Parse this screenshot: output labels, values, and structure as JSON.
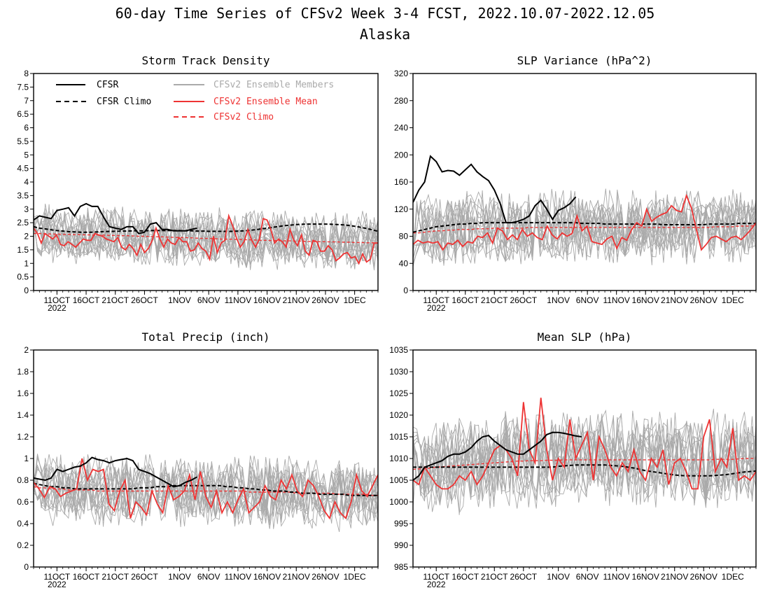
{
  "figure": {
    "title": "60-day Time Series of CFSv2 Week 3-4 FCST, 2022.10.07-2022.12.05",
    "subtitle": "Alaska"
  },
  "legend": {
    "cfsr": "CFSR",
    "cfsr_climo": "CFSR Climo",
    "members": "CFSv2 Ensemble Members",
    "ens_mean": "CFSv2 Ensemble Mean",
    "cfsv2_climo": "CFSv2 Climo"
  },
  "colors": {
    "cfsr": "#000000",
    "members": "#aaaaaa",
    "ens_mean": "#ee3333",
    "climo_red": "#ee3333"
  },
  "x_axis": {
    "type": "date",
    "start": "2022-10-07",
    "end": "2022-12-05",
    "ticks": [
      {
        "date": "2022-10-11",
        "label": "11OCT"
      },
      {
        "date": "2022-10-16",
        "label": "16OCT"
      },
      {
        "date": "2022-10-21",
        "label": "21OCT"
      },
      {
        "date": "2022-10-26",
        "label": "26OCT"
      },
      {
        "date": "2022-11-01",
        "label": "1NOV"
      },
      {
        "date": "2022-11-06",
        "label": "6NOV"
      },
      {
        "date": "2022-11-11",
        "label": "11NOV"
      },
      {
        "date": "2022-11-16",
        "label": "16NOV"
      },
      {
        "date": "2022-11-21",
        "label": "21NOV"
      },
      {
        "date": "2022-11-26",
        "label": "26NOV"
      },
      {
        "date": "2022-12-01",
        "label": "1DEC"
      }
    ],
    "year_label": "2022"
  },
  "chart_data": [
    {
      "type": "line",
      "title": "Storm Track Density",
      "ylim": [
        0,
        8
      ],
      "yticks": [
        "0",
        "0.5",
        "1",
        "1.5",
        "2",
        "2.5",
        "3",
        "3.5",
        "4",
        "4.5",
        "5",
        "5.5",
        "6",
        "6.5",
        "7",
        "7.5",
        "8"
      ],
      "cfsr": [
        2.6,
        2.75,
        2.7,
        2.65,
        2.95,
        3.0,
        3.05,
        2.75,
        3.1,
        3.2,
        3.1,
        3.1,
        2.7,
        2.35,
        2.3,
        2.25,
        2.35,
        2.35,
        2.1,
        2.15,
        2.45,
        2.5,
        2.25,
        2.25,
        2.2,
        2.2,
        2.2,
        2.25,
        2.3
      ],
      "cfsr_climo": [
        2.35,
        2.3,
        2.27,
        2.24,
        2.21,
        2.19,
        2.17,
        2.16,
        2.15,
        2.15,
        2.15,
        2.16,
        2.17,
        2.18,
        2.18,
        2.19,
        2.19,
        2.2,
        2.2,
        2.2,
        2.21,
        2.21,
        2.21,
        2.21,
        2.21,
        2.21,
        2.2,
        2.2,
        2.19,
        2.19,
        2.18,
        2.18,
        2.18,
        2.18,
        2.18,
        2.19,
        2.2,
        2.22,
        2.24,
        2.27,
        2.3,
        2.33,
        2.36,
        2.39,
        2.41,
        2.43,
        2.44,
        2.45,
        2.45,
        2.45,
        2.45,
        2.44,
        2.43,
        2.42,
        2.4,
        2.37,
        2.33,
        2.29,
        2.24,
        2.18
      ],
      "cfsv2_climo": [
        2.1,
        2.1,
        2.09,
        2.08,
        2.08,
        2.07,
        2.07,
        2.06,
        2.06,
        2.05,
        2.05,
        2.04,
        2.04,
        2.03,
        2.03,
        2.02,
        2.02,
        2.01,
        2.0,
        2.0,
        1.99,
        1.98,
        1.98,
        1.97,
        1.96,
        1.95,
        1.95,
        1.94,
        1.93,
        1.92,
        1.92,
        1.91,
        1.9,
        1.89,
        1.89,
        1.88,
        1.87,
        1.87,
        1.86,
        1.85,
        1.85,
        1.84,
        1.84,
        1.83,
        1.83,
        1.82,
        1.82,
        1.81,
        1.81,
        1.8,
        1.8,
        1.79,
        1.79,
        1.78,
        1.78,
        1.77,
        1.77,
        1.76,
        1.76,
        1.75
      ],
      "ens_mean": [
        2.3,
        2.1,
        1.75,
        2.1,
        2.0,
        1.9,
        2.05,
        1.7,
        1.65,
        1.8,
        1.7,
        1.6,
        1.75,
        1.9,
        1.85,
        1.85,
        2.1,
        2.05,
        2.0,
        1.9,
        1.85,
        1.8,
        1.95,
        1.6,
        1.5,
        1.7,
        1.55,
        1.3,
        1.7,
        1.4,
        1.55,
        1.85,
        2.3,
        1.9,
        1.6,
        1.9,
        1.75,
        1.7,
        1.95,
        1.8,
        1.8,
        1.45,
        1.5,
        1.75,
        1.55,
        1.45,
        1.15,
        2.0,
        1.4,
        1.75,
        1.85,
        2.75,
        2.4,
        1.95,
        1.6,
        1.8,
        2.25,
        1.85,
        1.6,
        1.9,
        2.65,
        2.6,
        2.25,
        1.75,
        1.9,
        1.8,
        1.6,
        2.25,
        1.85,
        1.65,
        2.05,
        1.45,
        1.3,
        1.85,
        1.8,
        1.45,
        1.45,
        1.65,
        1.5,
        1.1,
        1.2,
        1.35,
        1.4,
        1.2,
        1.25,
        1.0,
        1.35,
        1.05,
        1.15,
        1.75,
        1.75
      ],
      "members_n": 16,
      "members_amp": 0.6
    },
    {
      "type": "line",
      "title": "SLP Variance (hPa^2)",
      "ylim": [
        0,
        320
      ],
      "yticks": [
        "0",
        "40",
        "80",
        "120",
        "160",
        "200",
        "240",
        "280",
        "320"
      ],
      "cfsr": [
        130,
        148,
        160,
        198,
        190,
        175,
        177,
        176,
        170,
        178,
        186,
        175,
        168,
        162,
        148,
        128,
        100,
        100,
        102,
        105,
        110,
        125,
        133,
        120,
        105,
        118,
        122,
        128,
        138
      ],
      "cfsr_climo": [
        86,
        88,
        90,
        92,
        94,
        95,
        96,
        97,
        98,
        98,
        99,
        99,
        100,
        100,
        100,
        100,
        100,
        100,
        100,
        100,
        100,
        100,
        100,
        100,
        100,
        100,
        100,
        100,
        100,
        99,
        99,
        99,
        99,
        98,
        98,
        98,
        98,
        98,
        98,
        98,
        98,
        98,
        98,
        97,
        97,
        97,
        97,
        97,
        97,
        97,
        97,
        98,
        98,
        98,
        98,
        98,
        99,
        99,
        99,
        99
      ],
      "cfsv2_climo": [
        85,
        85,
        86,
        87,
        88,
        88,
        89,
        89,
        90,
        90,
        90,
        91,
        91,
        91,
        92,
        92,
        92,
        92,
        92,
        92,
        93,
        93,
        93,
        93,
        93,
        93,
        93,
        93,
        93,
        93,
        93,
        93,
        93,
        93,
        93,
        93,
        93,
        93,
        93,
        93,
        93,
        93,
        93,
        93,
        93,
        93,
        93,
        93,
        93,
        93,
        93,
        93,
        94,
        94,
        94,
        94,
        95,
        95,
        95,
        96
      ],
      "ens_mean": [
        68,
        74,
        70,
        72,
        70,
        72,
        60,
        70,
        68,
        74,
        65,
        72,
        70,
        80,
        78,
        85,
        70,
        92,
        88,
        75,
        82,
        75,
        90,
        80,
        85,
        78,
        75,
        95,
        82,
        76,
        85,
        80,
        84,
        110,
        88,
        95,
        72,
        70,
        68,
        76,
        80,
        62,
        78,
        74,
        90,
        100,
        95,
        120,
        102,
        108,
        112,
        115,
        125,
        118,
        116,
        140,
        122,
        90,
        60,
        68,
        78,
        80,
        76,
        72,
        78,
        80,
        75,
        82,
        90,
        100
      ],
      "members_n": 16,
      "members_amp": 30
    },
    {
      "type": "line",
      "title": "Total Precip (inch)",
      "ylim": [
        0,
        2
      ],
      "yticks": [
        "0",
        "0.2",
        "0.4",
        "0.6",
        "0.8",
        "1",
        "1.2",
        "1.4",
        "1.6",
        "1.8",
        "2"
      ],
      "cfsr": [
        0.82,
        0.81,
        0.8,
        0.82,
        0.9,
        0.88,
        0.9,
        0.92,
        0.93,
        0.96,
        1.01,
        0.99,
        0.98,
        0.96,
        0.98,
        0.99,
        1.0,
        0.98,
        0.9,
        0.88,
        0.86,
        0.83,
        0.8,
        0.77,
        0.74,
        0.75,
        0.78,
        0.8,
        0.83
      ],
      "cfsr_climo": [
        0.77,
        0.76,
        0.75,
        0.74,
        0.74,
        0.73,
        0.73,
        0.72,
        0.72,
        0.72,
        0.72,
        0.72,
        0.72,
        0.72,
        0.72,
        0.72,
        0.72,
        0.72,
        0.73,
        0.73,
        0.73,
        0.74,
        0.74,
        0.74,
        0.75,
        0.75,
        0.75,
        0.75,
        0.75,
        0.75,
        0.75,
        0.75,
        0.75,
        0.74,
        0.74,
        0.73,
        0.73,
        0.72,
        0.72,
        0.71,
        0.71,
        0.7,
        0.7,
        0.7,
        0.69,
        0.69,
        0.68,
        0.68,
        0.68,
        0.67,
        0.67,
        0.67,
        0.67,
        0.67,
        0.66,
        0.66,
        0.66,
        0.66,
        0.66,
        0.66
      ],
      "cfsv2_climo": [
        0.74,
        0.73,
        0.73,
        0.72,
        0.72,
        0.72,
        0.71,
        0.71,
        0.71,
        0.71,
        0.71,
        0.7,
        0.7,
        0.7,
        0.7,
        0.7,
        0.7,
        0.7,
        0.7,
        0.7,
        0.7,
        0.7,
        0.7,
        0.7,
        0.7,
        0.7,
        0.7,
        0.7,
        0.7,
        0.7,
        0.7,
        0.7,
        0.7,
        0.7,
        0.7,
        0.7,
        0.7,
        0.69,
        0.69,
        0.69,
        0.69,
        0.69,
        0.69,
        0.69,
        0.69,
        0.68,
        0.68,
        0.68,
        0.68,
        0.68,
        0.68,
        0.68,
        0.67,
        0.67,
        0.67,
        0.67,
        0.67,
        0.67,
        0.66,
        0.66
      ],
      "ens_mean": [
        0.78,
        0.72,
        0.64,
        0.74,
        0.72,
        0.65,
        0.68,
        0.7,
        0.72,
        1.0,
        0.8,
        0.9,
        0.88,
        0.9,
        0.58,
        0.52,
        0.7,
        0.8,
        0.45,
        0.6,
        0.55,
        0.48,
        0.7,
        0.58,
        0.5,
        0.75,
        0.62,
        0.65,
        0.7,
        0.85,
        0.62,
        0.88,
        0.65,
        0.55,
        0.7,
        0.5,
        0.6,
        0.5,
        0.62,
        0.72,
        0.5,
        0.55,
        0.6,
        0.75,
        0.65,
        0.62,
        0.8,
        0.72,
        0.85,
        0.7,
        0.65,
        0.8,
        0.75,
        0.65,
        0.52,
        0.45,
        0.6,
        0.5,
        0.45,
        0.6,
        0.85,
        0.7,
        0.65,
        0.75,
        0.85
      ],
      "members_n": 16,
      "members_amp": 0.18
    },
    {
      "type": "line",
      "title": "Mean SLP (hPa)",
      "ylim": [
        985,
        1035
      ],
      "yticks": [
        "985",
        "990",
        "995",
        "1000",
        "1005",
        "1010",
        "1015",
        "1020",
        "1025",
        "1030",
        "1035"
      ],
      "cfsr": [
        1005,
        1006,
        1008,
        1008.5,
        1009,
        1009.5,
        1010.5,
        1011,
        1011,
        1011.5,
        1012.5,
        1014,
        1015,
        1015.3,
        1014,
        1013,
        1012,
        1011.5,
        1011,
        1011,
        1012,
        1013,
        1014,
        1015.5,
        1016,
        1016,
        1015.8,
        1015.5,
        1015.2,
        1015
      ],
      "cfsr_climo": [
        1008,
        1008,
        1008,
        1008,
        1008,
        1008,
        1008,
        1008,
        1008,
        1008,
        1008,
        1008,
        1008,
        1008,
        1008,
        1008,
        1008,
        1008,
        1008,
        1008,
        1008,
        1008,
        1008,
        1008,
        1008,
        1008.2,
        1008.3,
        1008.4,
        1008.5,
        1008.5,
        1008.5,
        1008.5,
        1008.5,
        1008.5,
        1008.4,
        1008.3,
        1008.2,
        1008,
        1007.8,
        1007.5,
        1007.2,
        1007,
        1006.8,
        1006.6,
        1006.4,
        1006.2,
        1006.1,
        1006,
        1006,
        1006,
        1006,
        1006,
        1006.1,
        1006.2,
        1006.3,
        1006.5,
        1006.7,
        1006.9,
        1007,
        1007.1
      ],
      "cfsv2_climo": [
        1007.5,
        1007.6,
        1007.7,
        1007.8,
        1008,
        1008.1,
        1008.2,
        1008.3,
        1008.4,
        1008.5,
        1008.6,
        1008.7,
        1008.8,
        1008.9,
        1009,
        1009.1,
        1009.2,
        1009.3,
        1009.4,
        1009.4,
        1009.5,
        1009.5,
        1009.5,
        1009.6,
        1009.6,
        1009.6,
        1009.7,
        1009.7,
        1009.7,
        1009.7,
        1009.7,
        1009.7,
        1009.7,
        1009.7,
        1009.7,
        1009.7,
        1009.7,
        1009.7,
        1009.7,
        1009.7,
        1009.7,
        1009.7,
        1009.7,
        1009.7,
        1009.7,
        1009.7,
        1009.7,
        1009.7,
        1009.7,
        1009.7,
        1009.7,
        1009.7,
        1009.8,
        1009.8,
        1009.8,
        1009.8,
        1009.9,
        1010,
        1010,
        1010.1
      ],
      "ens_mean": [
        1005,
        1004,
        1008,
        1006,
        1004,
        1003,
        1003,
        1004,
        1006,
        1005,
        1007,
        1004,
        1006,
        1009,
        1012,
        1013,
        1012,
        1010,
        1006,
        1023,
        1012,
        1009,
        1024,
        1012,
        1005,
        1010,
        1008,
        1019,
        1010,
        1013,
        1016,
        1005,
        1015,
        1012,
        1008,
        1006,
        1009,
        1007,
        1012,
        1007,
        1005,
        1010,
        1008,
        1012,
        1004,
        1009,
        1010,
        1007,
        1003,
        1003,
        1015,
        1019,
        1007,
        1010,
        1008,
        1017,
        1005,
        1006,
        1005,
        1007
      ],
      "members_n": 16,
      "members_amp": 6
    }
  ]
}
